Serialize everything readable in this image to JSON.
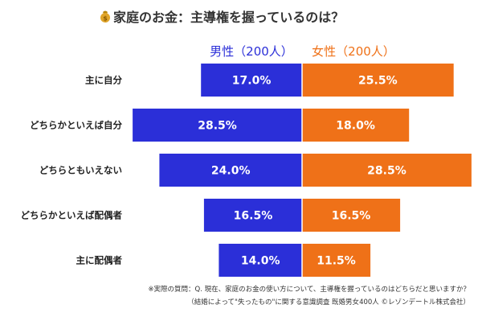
{
  "title": "家庭のお金：主導権を握っているのは？",
  "title_icon": "money-bag-icon",
  "colors": {
    "male": "#2b2fd8",
    "female": "#ef7118",
    "divider": "#ffffff"
  },
  "chart_data": {
    "type": "bar",
    "orientation": "horizontal-diverging",
    "title": "家庭のお金：主導権を握っているのは？",
    "categories": [
      "主に自分",
      "どちらかといえば自分",
      "どちらともいえない",
      "どちらかといえば配偶者",
      "主に配偶者"
    ],
    "series": [
      {
        "name": "男性（200人）",
        "values": [
          17.0,
          28.5,
          24.0,
          16.5,
          14.0
        ],
        "labels": [
          "17.0%",
          "28.5%",
          "24.0%",
          "16.5%",
          "14.0%"
        ],
        "color": "#2b2fd8",
        "direction": "left"
      },
      {
        "name": "女性（200人）",
        "values": [
          25.5,
          18.0,
          28.5,
          16.5,
          11.5
        ],
        "labels": [
          "25.5%",
          "18.0%",
          "28.5%",
          "16.5%",
          "11.5%"
        ],
        "color": "#ef7118",
        "direction": "right"
      }
    ],
    "unit": "%",
    "grid": false,
    "legend_position": "top"
  },
  "notes": [
    "※実際の質問：Q. 現在、家庭のお金の使い方について、主導権を握っているのはどちらだと思いますか？",
    "（結婚によって\"失ったもの\"に関する意識調査 既婚男女400人 ©レゾンデートル株式会社）"
  ]
}
